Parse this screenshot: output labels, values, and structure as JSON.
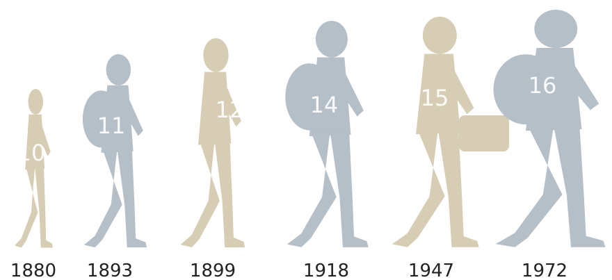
{
  "figures": [
    {
      "age": "10",
      "year": "1880",
      "color": "#d6cdb4"
    },
    {
      "age": "11",
      "year": "1893",
      "color": "#b5bfc8"
    },
    {
      "age": "12",
      "year": "1899",
      "color": "#d6cdb4"
    },
    {
      "age": "14",
      "year": "1918",
      "color": "#b5bfc8"
    },
    {
      "age": "15",
      "year": "1947",
      "color": "#d6cdb4"
    },
    {
      "age": "16",
      "year": "1972",
      "color": "#b5bfc8"
    }
  ]
}
